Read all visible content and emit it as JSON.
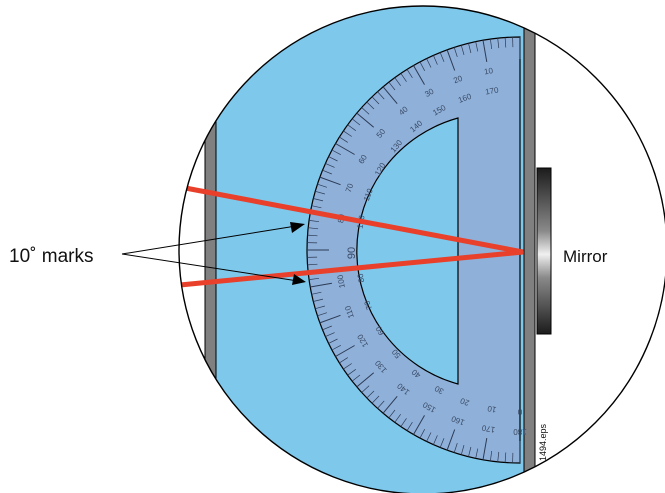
{
  "labels": {
    "marks": "10˚ marks",
    "mirror": "Mirror",
    "file_id": "1494.eps"
  },
  "protractor": {
    "outer_scale": [
      "10",
      "20",
      "30",
      "40",
      "50",
      "60",
      "70",
      "80",
      "90",
      "100",
      "110",
      "120",
      "130",
      "140",
      "150",
      "160",
      "170",
      "180"
    ],
    "inner_scale": [
      "170",
      "160",
      "150",
      "140",
      "130",
      "120",
      "110",
      "100",
      "90",
      "80",
      "70",
      "60",
      "50",
      "40",
      "30",
      "20",
      "10",
      "0"
    ],
    "center_label": "90"
  },
  "colors": {
    "water": "#7ec8ec",
    "protractor": "#8fb0d8",
    "beam": "#e8402a",
    "wall": "#808080",
    "outline": "#000000"
  }
}
